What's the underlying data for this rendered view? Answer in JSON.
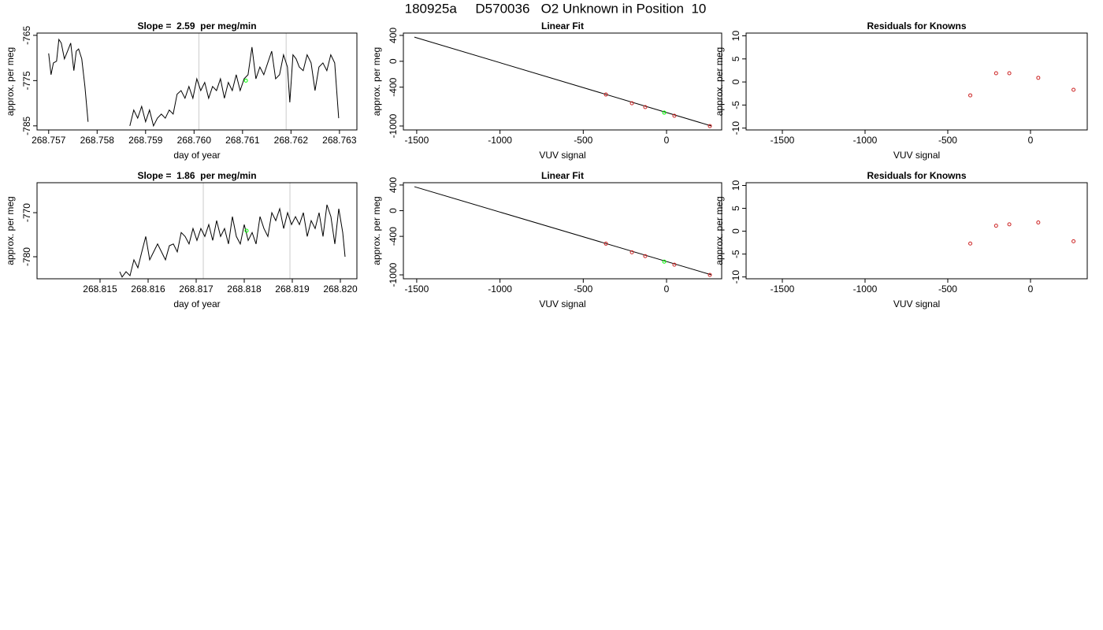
{
  "title": "180925a     D570036   O2 Unknown in Position  10",
  "chart_data": [
    {
      "type": "line",
      "title": "Slope =  2.59  per meg/min",
      "xlabel": "day of year",
      "ylabel": "approx. per meg",
      "xlim": [
        268.75676,
        268.76336
      ],
      "ylim": [
        -785.9,
        -764.5
      ],
      "xticks": [
        268.757,
        268.758,
        268.759,
        {
          "value": 268.76,
          "label": "268.760"
        },
        268.761,
        268.762,
        268.763
      ],
      "yticks": [
        -765,
        -775,
        -785
      ],
      "color": "#000000",
      "x": [
        268.757,
        268.757049,
        268.757098,
        268.757163,
        268.757211,
        268.75726,
        268.757325,
        268.75739,
        268.757455,
        268.75752,
        268.757569,
        268.757618,
        268.757683,
        268.757748,
        268.757813,
        268.7582,
        268.758675,
        268.758756,
        268.758837,
        268.758919,
        268.759,
        268.759081,
        268.759163,
        268.759244,
        268.759325,
        268.759407,
        268.759488,
        268.759569,
        268.75965,
        268.759732,
        268.759813,
        268.759894,
        268.759976,
        268.760057,
        268.760138,
        268.76022,
        268.760301,
        268.760382,
        268.760463,
        268.760545,
        268.760626,
        268.760707,
        268.760789,
        268.76087,
        268.760951,
        268.761033,
        268.761114,
        268.761195,
        268.761276,
        268.761358,
        268.761439,
        268.76152,
        268.761602,
        268.761683,
        268.761764,
        268.761846,
        268.761927,
        268.761976,
        268.762041,
        268.762106,
        268.762171,
        268.762252,
        268.762333,
        268.762415,
        268.762496,
        268.762577,
        268.762659,
        268.76274,
        268.762821,
        268.762902,
        268.762984
      ],
      "values": [
        -769.0,
        -773.7,
        -771.1,
        -770.7,
        -765.9,
        -766.7,
        -770.2,
        -768.5,
        -766.7,
        -772.8,
        -768.5,
        -768.0,
        -770.2,
        -776.3,
        -784.1,
        null,
        -785.0,
        -781.5,
        -783.3,
        -780.7,
        -784.1,
        -781.5,
        -785.0,
        -783.3,
        -782.4,
        -783.3,
        -781.5,
        -782.4,
        -778.0,
        -777.2,
        -778.9,
        -776.3,
        -778.9,
        -774.6,
        -777.2,
        -775.4,
        -778.9,
        -776.3,
        -777.2,
        -774.6,
        -778.9,
        -775.4,
        -777.2,
        -773.7,
        -777.2,
        -774.6,
        -773.7,
        -767.6,
        -774.6,
        -772.0,
        -773.7,
        -771.1,
        -768.5,
        -774.6,
        -773.7,
        -769.3,
        -772.0,
        -779.8,
        -769.3,
        -770.2,
        -772.0,
        -772.8,
        -769.3,
        -771.1,
        -777.2,
        -772.0,
        -771.1,
        -772.8,
        -769.3,
        -771.1,
        -783.3
      ],
      "vlines": [
        268.7601,
        268.7619
      ],
      "vline_color": "#cccccc",
      "highlight": {
        "x": [
          268.76107
        ],
        "values": [
          -775.0
        ],
        "color": "#00ff00"
      }
    },
    {
      "type": "scatter",
      "title": "Linear Fit",
      "xlabel": "VUV signal",
      "ylabel": "approx. per meg",
      "xlim": [
        -1580,
        331
      ],
      "ylim": [
        -1061,
        436
      ],
      "xticks": [
        -1500,
        -1000,
        -500,
        0
      ],
      "yticks": [
        400,
        0,
        -400,
        -1000
      ],
      "fit_line": {
        "x": [
          -1514,
          270
        ],
        "values": [
          374,
          -1000
        ],
        "color": "#000000"
      },
      "points": {
        "x": [
          -364,
          -208,
          -128,
          47,
          260
        ],
        "values": [
          -514,
          -648,
          -708,
          -842,
          -1001
        ],
        "color": "#cc2222"
      },
      "highlight": {
        "x": [
          -14
        ],
        "values": [
          -794
        ],
        "color": "#00ff00"
      }
    },
    {
      "type": "scatter",
      "title": "Residuals for Knowns",
      "xlabel": "VUV signal",
      "ylabel": "approx. per meg",
      "xlim": [
        -1719,
        343
      ],
      "ylim": [
        -10.4,
        10.6
      ],
      "xticks": [
        -1500,
        -1000,
        -500,
        0
      ],
      "yticks": [
        10,
        5,
        0,
        -5,
        -10
      ],
      "points": {
        "x": [
          -364,
          -208,
          -128,
          47,
          260
        ],
        "values": [
          -2.9,
          1.9,
          1.9,
          0.9,
          -1.7
        ],
        "color": "#cc2222"
      }
    },
    {
      "type": "line",
      "title": "Slope =  1.86  per meg/min",
      "xlabel": "day of year",
      "ylabel": "approx. per meg",
      "xlim": [
        268.813689,
        268.820344
      ],
      "ylim": [
        -785.0,
        -763.2
      ],
      "xticks": [
        268.815,
        268.816,
        268.817,
        268.818,
        268.819,
        {
          "value": 268.82,
          "label": "268.820"
        }
      ],
      "yticks": [
        -770,
        -780
      ],
      "color": "#000000",
      "x": [
        268.81541,
        268.815459,
        268.815541,
        268.815623,
        268.815705,
        268.815787,
        268.815869,
        268.815951,
        268.816033,
        268.816115,
        268.816197,
        268.816279,
        268.816361,
        268.816443,
        268.816525,
        268.816607,
        268.816689,
        268.81677,
        268.816852,
        268.816934,
        268.817016,
        268.817098,
        268.81718,
        268.817262,
        268.817344,
        268.817426,
        268.817508,
        268.81759,
        268.817672,
        268.817754,
        268.817836,
        268.817918,
        268.818,
        268.818082,
        268.818164,
        268.818246,
        268.818328,
        268.81841,
        268.818492,
        268.818574,
        268.818656,
        268.818738,
        268.81882,
        268.818902,
        268.818984,
        268.819066,
        268.819148,
        268.81923,
        268.819311,
        268.819393,
        268.819475,
        268.819557,
        268.819639,
        268.819721,
        268.819803,
        268.819885,
        268.819967,
        268.820049,
        268.820098
      ],
      "values": [
        -783.4,
        -784.6,
        -783.4,
        -784.3,
        -780.7,
        -782.5,
        -778.9,
        -775.4,
        -780.7,
        -778.9,
        -777.1,
        -778.9,
        -780.7,
        -777.5,
        -777.1,
        -778.9,
        -774.5,
        -775.4,
        -777.1,
        -773.6,
        -776.3,
        -773.6,
        -775.4,
        -772.7,
        -776.3,
        -771.8,
        -775.4,
        -773.6,
        -777.1,
        -770.9,
        -775.4,
        -777.1,
        -772.7,
        -776.3,
        -774.5,
        -777.1,
        -770.9,
        -773.6,
        -775.4,
        -770.0,
        -771.8,
        -769.1,
        -773.6,
        -770.0,
        -772.7,
        -770.9,
        -772.7,
        -770.0,
        -775.4,
        -771.8,
        -773.6,
        -770.0,
        -775.4,
        -768.2,
        -770.9,
        -777.1,
        -769.1,
        -774.5,
        -780.0
      ],
      "vlines": [
        268.817148,
        268.818951
      ],
      "vline_color": "#cccccc",
      "highlight": {
        "x": [
          268.818049
        ],
        "values": [
          -774.1
        ],
        "color": "#00ff00"
      }
    },
    {
      "type": "scatter",
      "title": "Linear Fit",
      "xlabel": "VUV signal",
      "ylabel": "approx. per meg",
      "xlim": [
        -1580,
        331
      ],
      "ylim": [
        -1061,
        436
      ],
      "xticks": [
        -1500,
        -1000,
        -500,
        0
      ],
      "yticks": [
        400,
        0,
        -400,
        -1000
      ],
      "fit_line": {
        "x": [
          -1514,
          270
        ],
        "values": [
          374,
          -1000
        ],
        "color": "#000000"
      },
      "points": {
        "x": [
          -364,
          -208,
          -128,
          47,
          260
        ],
        "values": [
          -514,
          -648,
          -708,
          -842,
          -1001
        ],
        "color": "#cc2222"
      },
      "highlight": {
        "x": [
          -14
        ],
        "values": [
          -794
        ],
        "color": "#00ff00"
      }
    },
    {
      "type": "scatter",
      "title": "Residuals for Knowns",
      "xlabel": "VUV signal",
      "ylabel": "approx. per meg",
      "xlim": [
        -1719,
        343
      ],
      "ylim": [
        -10.4,
        10.6
      ],
      "xticks": [
        -1500,
        -1000,
        -500,
        0
      ],
      "yticks": [
        10,
        5,
        0,
        -5,
        -10
      ],
      "points": {
        "x": [
          -364,
          -208,
          -128,
          47,
          260
        ],
        "values": [
          -2.7,
          1.2,
          1.5,
          1.9,
          -2.2
        ],
        "color": "#cc2222"
      }
    }
  ]
}
